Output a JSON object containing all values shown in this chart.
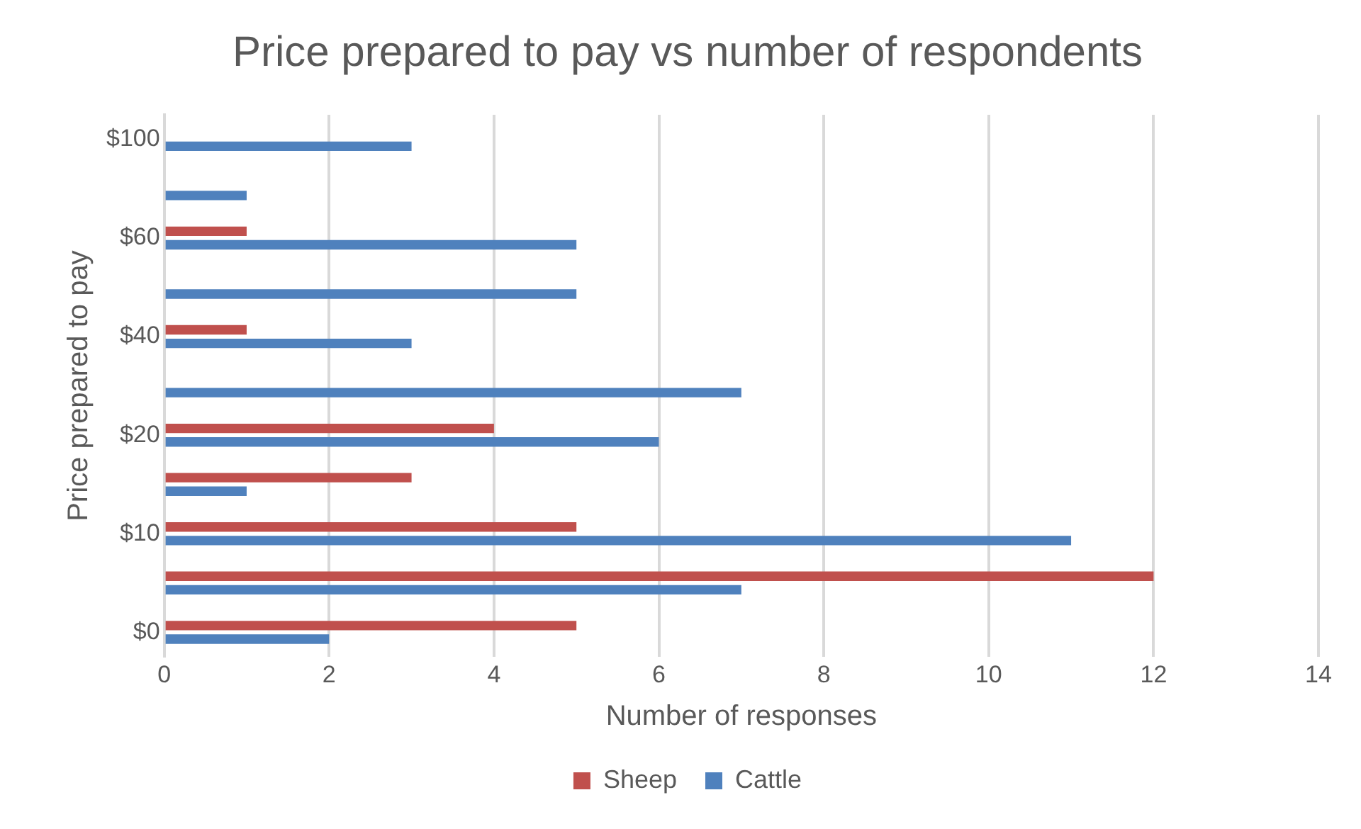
{
  "chart_data": {
    "type": "bar",
    "orientation": "horizontal",
    "title": "Price prepared to pay vs number of respondents",
    "xlabel": "Number of responses",
    "ylabel": "Price prepared to pay",
    "categories": [
      "$100",
      null,
      "$60",
      null,
      "$40",
      null,
      "$20",
      null,
      "$10",
      null,
      "$0"
    ],
    "series": [
      {
        "name": "Sheep",
        "color": "#c0504d",
        "values": [
          null,
          null,
          1,
          null,
          1,
          null,
          4,
          3,
          5,
          12,
          5
        ]
      },
      {
        "name": "Cattle",
        "color": "#4f81bd",
        "values": [
          3,
          1,
          5,
          5,
          3,
          7,
          6,
          1,
          11,
          7,
          2
        ]
      }
    ],
    "xlim": [
      0,
      14
    ],
    "xticks": [
      0,
      2,
      4,
      6,
      8,
      10,
      12,
      14
    ],
    "grid": "x",
    "legend": "bottom"
  }
}
